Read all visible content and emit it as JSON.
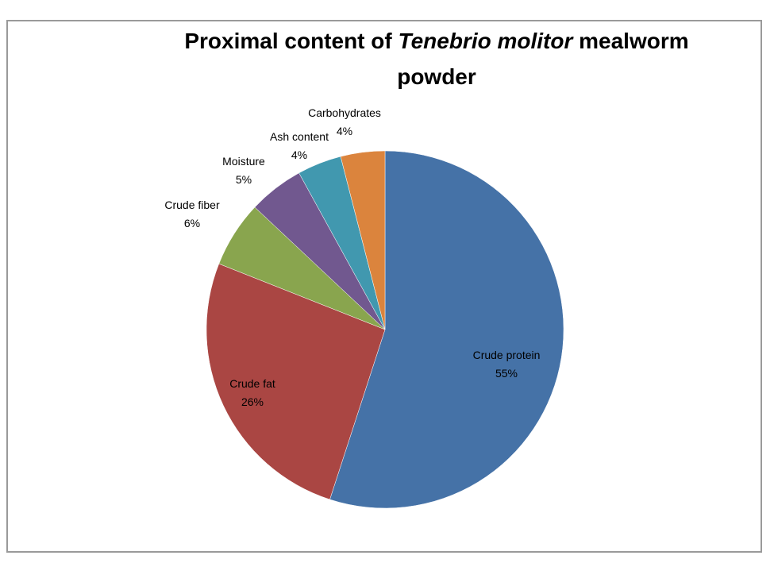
{
  "chart_data": {
    "type": "pie",
    "title_parts": [
      "Proximal content of ",
      "Tenebrio molitor",
      " mealworm"
    ],
    "title_line2": "powder",
    "categories": [
      "Crude protein",
      "Crude fat",
      "Crude fiber",
      "Moisture",
      "Ash content",
      "Carbohydrates"
    ],
    "values": [
      55,
      26,
      6,
      5,
      4,
      4
    ],
    "value_labels": [
      "55%",
      "26%",
      "6%",
      "5%",
      "4%",
      "4%"
    ],
    "colors": [
      "#4572A7",
      "#AA4643",
      "#89A54E",
      "#71588F",
      "#4198AF",
      "#DB843D"
    ],
    "start": "top, clockwise",
    "legend": "none"
  }
}
